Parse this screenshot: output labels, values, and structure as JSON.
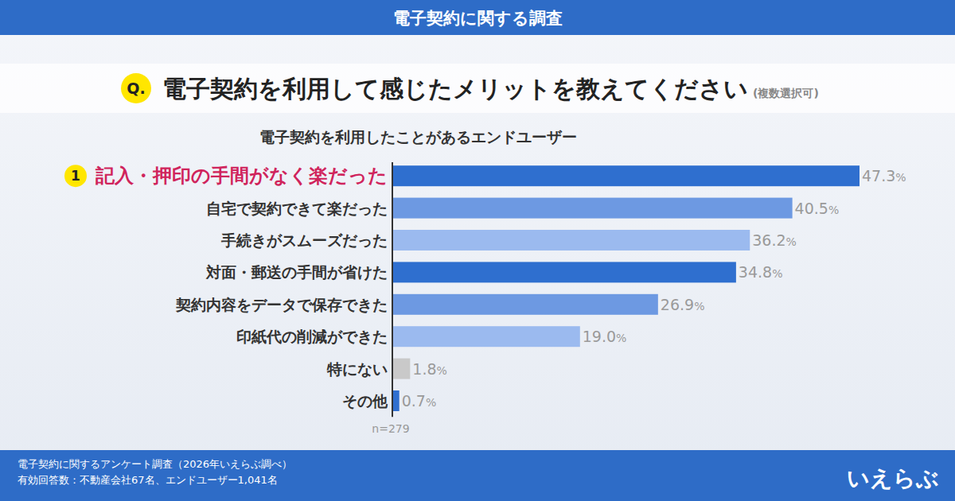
{
  "page": {
    "header_title": "電子契約に関する調査",
    "question_label": "Q.",
    "footer_lines": [
      "電子契約に関するアンケート調査（2026年いえらぶ調べ）",
      "有効回答数：不動産会社67名、エンドユーザー1,041名"
    ],
    "logo": "いえらぶ"
  },
  "chart_data": {
    "type": "bar",
    "orientation": "horizontal",
    "title": "電子契約を利用して感じたメリットを教えてください",
    "title_note": "(複数選択可)",
    "subtitle": "電子契約を利用したことがあるエンドユーザー",
    "note": "n=279",
    "annotations": [
      "1"
    ],
    "categories": [
      "記入・押印の手間がなく楽だった",
      "自宅で契約できて楽だった",
      "手続きがスムーズだった",
      "対面・郵送の手間が省けた",
      "契約内容をデータで保存できた",
      "印紙代の削減ができた",
      "特にない",
      "その他"
    ],
    "values": [
      47.3,
      40.5,
      36.2,
      34.8,
      26.9,
      19.0,
      1.8,
      0.7
    ],
    "value_labels": [
      "47.3%",
      "40.5%",
      "36.2%",
      "34.8%",
      "26.9%",
      "19.0%",
      "1.8%",
      "0.7%"
    ],
    "colors": [
      "#2f6fcf",
      "#6d99e2",
      "#9bbaef",
      "#2f6fcf",
      "#6d99e2",
      "#9bbaef",
      "#c9c9c9",
      "#2f6fcf"
    ],
    "xlim": [
      0,
      47.3
    ],
    "data_labels": true,
    "tick_labels": "y"
  }
}
